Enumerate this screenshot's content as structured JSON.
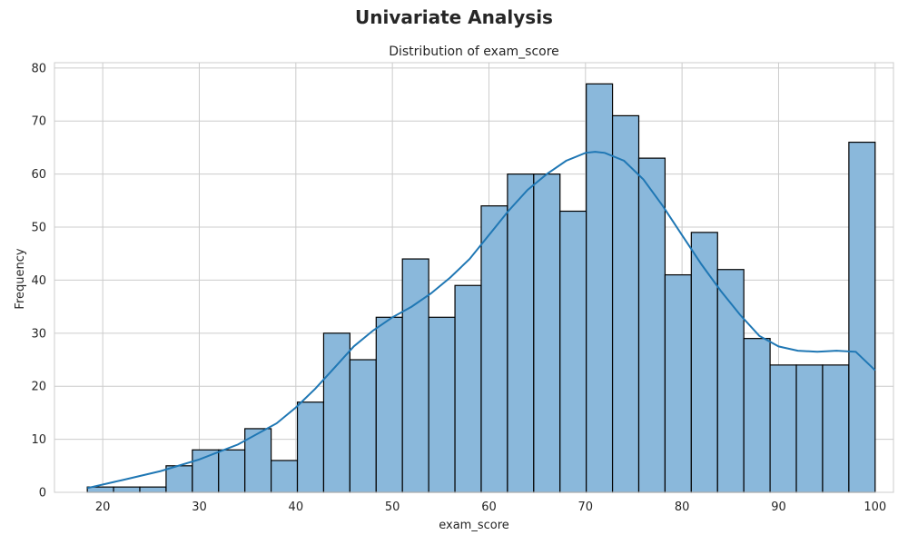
{
  "figure": {
    "suptitle": "Univariate Analysis"
  },
  "colors": {
    "bar_fill": "#8ab8db",
    "bar_edge": "#000000",
    "kde_line": "#1f77b4",
    "grid": "#cccccc",
    "frame": "#cccccc"
  },
  "chart_data": {
    "type": "bar",
    "title": "Distribution of exam_score",
    "xlabel": "exam_score",
    "ylabel": "Frequency",
    "xlim": [
      15,
      101.9
    ],
    "ylim": [
      0,
      81
    ],
    "xticks": [
      20,
      30,
      40,
      50,
      60,
      70,
      80,
      90,
      100
    ],
    "yticks": [
      0,
      10,
      20,
      30,
      40,
      50,
      60,
      70,
      80
    ],
    "grid": true,
    "bin_edges": [
      18.4,
      21.12,
      23.84,
      26.56,
      29.28,
      32.0,
      34.72,
      37.44,
      40.16,
      42.88,
      45.6,
      48.32,
      51.04,
      53.76,
      56.48,
      59.2,
      61.92,
      64.64,
      67.36,
      70.08,
      72.8,
      75.52,
      78.24,
      80.96,
      83.68,
      86.4,
      89.12,
      91.84,
      94.56,
      97.28,
      100.0
    ],
    "counts": [
      1,
      1,
      1,
      5,
      8,
      8,
      12,
      6,
      17,
      30,
      25,
      33,
      44,
      33,
      39,
      54,
      60,
      60,
      53,
      77,
      71,
      63,
      41,
      49,
      42,
      29,
      24,
      24,
      24,
      66
    ],
    "kde": {
      "x": [
        18.4,
        22,
        26,
        30,
        34,
        38,
        40,
        42,
        44,
        46,
        48,
        50,
        52,
        54,
        56,
        58,
        60,
        62,
        64,
        66,
        68,
        70,
        71,
        72,
        74,
        76,
        78,
        80,
        82,
        84,
        86,
        88,
        90,
        92,
        94,
        96,
        98,
        100
      ],
      "y": [
        0.8,
        2.3,
        4.0,
        6.2,
        9.0,
        13.0,
        16.0,
        19.5,
        23.5,
        27.5,
        30.5,
        33.0,
        35.0,
        37.5,
        40.5,
        44.0,
        48.5,
        53.0,
        57.0,
        60.0,
        62.5,
        64.0,
        64.2,
        64.0,
        62.5,
        59.0,
        54.0,
        48.5,
        43.0,
        38.0,
        33.5,
        29.5,
        27.5,
        26.7,
        26.5,
        26.7,
        26.5,
        23.0
      ]
    }
  }
}
